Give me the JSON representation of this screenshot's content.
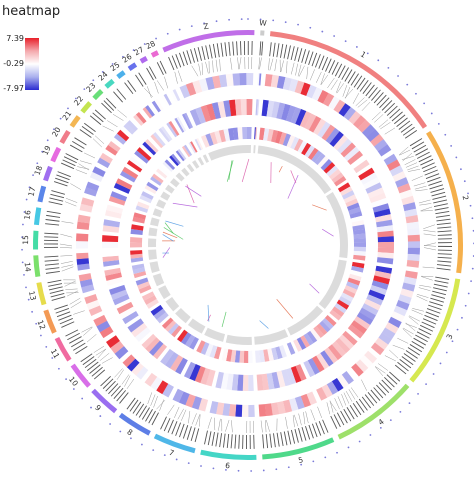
{
  "legend": {
    "title": "heatmap",
    "max_label": "7.39",
    "mid_label": "-0.29",
    "min_label": "-7.97",
    "colors": {
      "high": "#e8202a",
      "mid": "#ffffff",
      "low": "#2a2ad0"
    }
  },
  "chart_data": {
    "type": "heatmap",
    "layout": "circos",
    "value_range": [
      -7.97,
      7.39
    ],
    "chromosomes": [
      {
        "label": "1",
        "color": "#f08080"
      },
      {
        "label": "2",
        "color": "#f5b04c"
      },
      {
        "label": "3",
        "color": "#d6e84f"
      },
      {
        "label": "4",
        "color": "#9ee06a"
      },
      {
        "label": "5",
        "color": "#4fd98a"
      },
      {
        "label": "6",
        "color": "#44d6c6"
      },
      {
        "label": "7",
        "color": "#4fb7e8"
      },
      {
        "label": "8",
        "color": "#5d7ee6"
      },
      {
        "label": "9",
        "color": "#9a6ef0"
      },
      {
        "label": "10",
        "color": "#d86ee8"
      },
      {
        "label": "11",
        "color": "#f06aa0"
      },
      {
        "label": "12",
        "color": "#f39a55"
      },
      {
        "label": "13",
        "color": "#e6dc4c"
      },
      {
        "label": "14",
        "color": "#7be06b"
      },
      {
        "label": "15",
        "color": "#44dca6"
      },
      {
        "label": "16",
        "color": "#46c8e4"
      },
      {
        "label": "17",
        "color": "#5a86ea"
      },
      {
        "label": "18",
        "color": "#a06ef0"
      },
      {
        "label": "19",
        "color": "#e66ae0"
      },
      {
        "label": "20",
        "color": "#f07c8a"
      },
      {
        "label": "21",
        "color": "#f3b653"
      },
      {
        "label": "22",
        "color": "#c4e450"
      },
      {
        "label": "23",
        "color": "#68de78"
      },
      {
        "label": "24",
        "color": "#48d8c0"
      },
      {
        "label": "25",
        "color": "#4cb0ea"
      },
      {
        "label": "26",
        "color": "#6872ec"
      },
      {
        "label": "27",
        "color": "#b06aee"
      },
      {
        "label": "28",
        "color": "#ea6ad2"
      },
      {
        "label": "Z",
        "color": "#c06ee8"
      },
      {
        "label": "W",
        "color": "#cccccc"
      }
    ],
    "chromosome_sizes": [
      14,
      11,
      8.5,
      6.5,
      5.5,
      4.2,
      3.2,
      2.6,
      2.3,
      2.0,
      1.9,
      1.8,
      1.7,
      1.6,
      1.4,
      1.3,
      1.2,
      1.1,
      1.1,
      1.0,
      0.9,
      0.9,
      0.8,
      0.7,
      0.6,
      0.6,
      0.5,
      0.5,
      7.0,
      0.3
    ],
    "tracks": [
      "chromosome ideogram",
      "gene labels",
      "heatmap ring 1",
      "heatmap ring 2",
      "heatmap ring 3",
      "gray segment ring",
      "links"
    ]
  }
}
